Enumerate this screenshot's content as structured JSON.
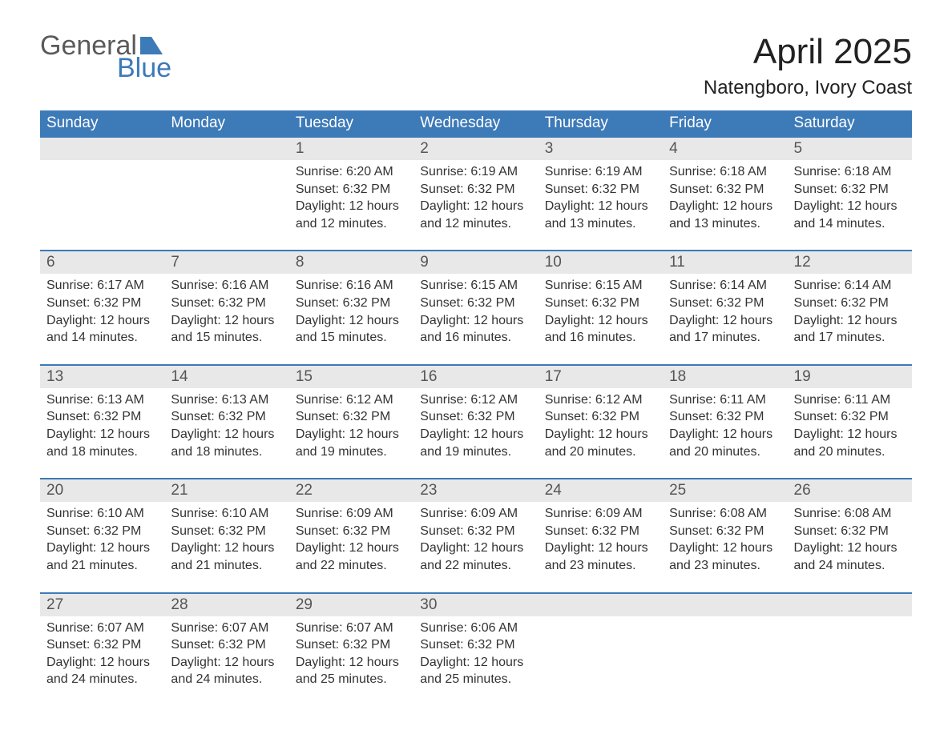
{
  "logo": {
    "word1": "General",
    "word2": "Blue",
    "flag_color": "#3d7ab8"
  },
  "title": "April 2025",
  "location": "Natengboro, Ivory Coast",
  "colors": {
    "brand_blue": "#3d7ab8",
    "row_header_bg": "#e8e8e8",
    "row_border": "#3d7ab8",
    "text_dark": "#333333",
    "page_bg": "#ffffff",
    "header_text": "#ffffff"
  },
  "typography": {
    "month_title_pt": 33,
    "location_pt": 18,
    "dow_header_pt": 14,
    "day_number_pt": 14,
    "body_pt": 12,
    "font_family": "Segoe UI / Arial"
  },
  "calendar": {
    "type": "table",
    "columns": [
      "Sunday",
      "Monday",
      "Tuesday",
      "Wednesday",
      "Thursday",
      "Friday",
      "Saturday"
    ],
    "weeks": [
      [
        null,
        null,
        {
          "n": "1",
          "sunrise": "6:20 AM",
          "sunset": "6:32 PM",
          "daylight": "12 hours and 12 minutes."
        },
        {
          "n": "2",
          "sunrise": "6:19 AM",
          "sunset": "6:32 PM",
          "daylight": "12 hours and 12 minutes."
        },
        {
          "n": "3",
          "sunrise": "6:19 AM",
          "sunset": "6:32 PM",
          "daylight": "12 hours and 13 minutes."
        },
        {
          "n": "4",
          "sunrise": "6:18 AM",
          "sunset": "6:32 PM",
          "daylight": "12 hours and 13 minutes."
        },
        {
          "n": "5",
          "sunrise": "6:18 AM",
          "sunset": "6:32 PM",
          "daylight": "12 hours and 14 minutes."
        }
      ],
      [
        {
          "n": "6",
          "sunrise": "6:17 AM",
          "sunset": "6:32 PM",
          "daylight": "12 hours and 14 minutes."
        },
        {
          "n": "7",
          "sunrise": "6:16 AM",
          "sunset": "6:32 PM",
          "daylight": "12 hours and 15 minutes."
        },
        {
          "n": "8",
          "sunrise": "6:16 AM",
          "sunset": "6:32 PM",
          "daylight": "12 hours and 15 minutes."
        },
        {
          "n": "9",
          "sunrise": "6:15 AM",
          "sunset": "6:32 PM",
          "daylight": "12 hours and 16 minutes."
        },
        {
          "n": "10",
          "sunrise": "6:15 AM",
          "sunset": "6:32 PM",
          "daylight": "12 hours and 16 minutes."
        },
        {
          "n": "11",
          "sunrise": "6:14 AM",
          "sunset": "6:32 PM",
          "daylight": "12 hours and 17 minutes."
        },
        {
          "n": "12",
          "sunrise": "6:14 AM",
          "sunset": "6:32 PM",
          "daylight": "12 hours and 17 minutes."
        }
      ],
      [
        {
          "n": "13",
          "sunrise": "6:13 AM",
          "sunset": "6:32 PM",
          "daylight": "12 hours and 18 minutes."
        },
        {
          "n": "14",
          "sunrise": "6:13 AM",
          "sunset": "6:32 PM",
          "daylight": "12 hours and 18 minutes."
        },
        {
          "n": "15",
          "sunrise": "6:12 AM",
          "sunset": "6:32 PM",
          "daylight": "12 hours and 19 minutes."
        },
        {
          "n": "16",
          "sunrise": "6:12 AM",
          "sunset": "6:32 PM",
          "daylight": "12 hours and 19 minutes."
        },
        {
          "n": "17",
          "sunrise": "6:12 AM",
          "sunset": "6:32 PM",
          "daylight": "12 hours and 20 minutes."
        },
        {
          "n": "18",
          "sunrise": "6:11 AM",
          "sunset": "6:32 PM",
          "daylight": "12 hours and 20 minutes."
        },
        {
          "n": "19",
          "sunrise": "6:11 AM",
          "sunset": "6:32 PM",
          "daylight": "12 hours and 20 minutes."
        }
      ],
      [
        {
          "n": "20",
          "sunrise": "6:10 AM",
          "sunset": "6:32 PM",
          "daylight": "12 hours and 21 minutes."
        },
        {
          "n": "21",
          "sunrise": "6:10 AM",
          "sunset": "6:32 PM",
          "daylight": "12 hours and 21 minutes."
        },
        {
          "n": "22",
          "sunrise": "6:09 AM",
          "sunset": "6:32 PM",
          "daylight": "12 hours and 22 minutes."
        },
        {
          "n": "23",
          "sunrise": "6:09 AM",
          "sunset": "6:32 PM",
          "daylight": "12 hours and 22 minutes."
        },
        {
          "n": "24",
          "sunrise": "6:09 AM",
          "sunset": "6:32 PM",
          "daylight": "12 hours and 23 minutes."
        },
        {
          "n": "25",
          "sunrise": "6:08 AM",
          "sunset": "6:32 PM",
          "daylight": "12 hours and 23 minutes."
        },
        {
          "n": "26",
          "sunrise": "6:08 AM",
          "sunset": "6:32 PM",
          "daylight": "12 hours and 24 minutes."
        }
      ],
      [
        {
          "n": "27",
          "sunrise": "6:07 AM",
          "sunset": "6:32 PM",
          "daylight": "12 hours and 24 minutes."
        },
        {
          "n": "28",
          "sunrise": "6:07 AM",
          "sunset": "6:32 PM",
          "daylight": "12 hours and 24 minutes."
        },
        {
          "n": "29",
          "sunrise": "6:07 AM",
          "sunset": "6:32 PM",
          "daylight": "12 hours and 25 minutes."
        },
        {
          "n": "30",
          "sunrise": "6:06 AM",
          "sunset": "6:32 PM",
          "daylight": "12 hours and 25 minutes."
        },
        null,
        null,
        null
      ]
    ],
    "labels": {
      "sunrise": "Sunrise:",
      "sunset": "Sunset:",
      "daylight": "Daylight:"
    }
  }
}
